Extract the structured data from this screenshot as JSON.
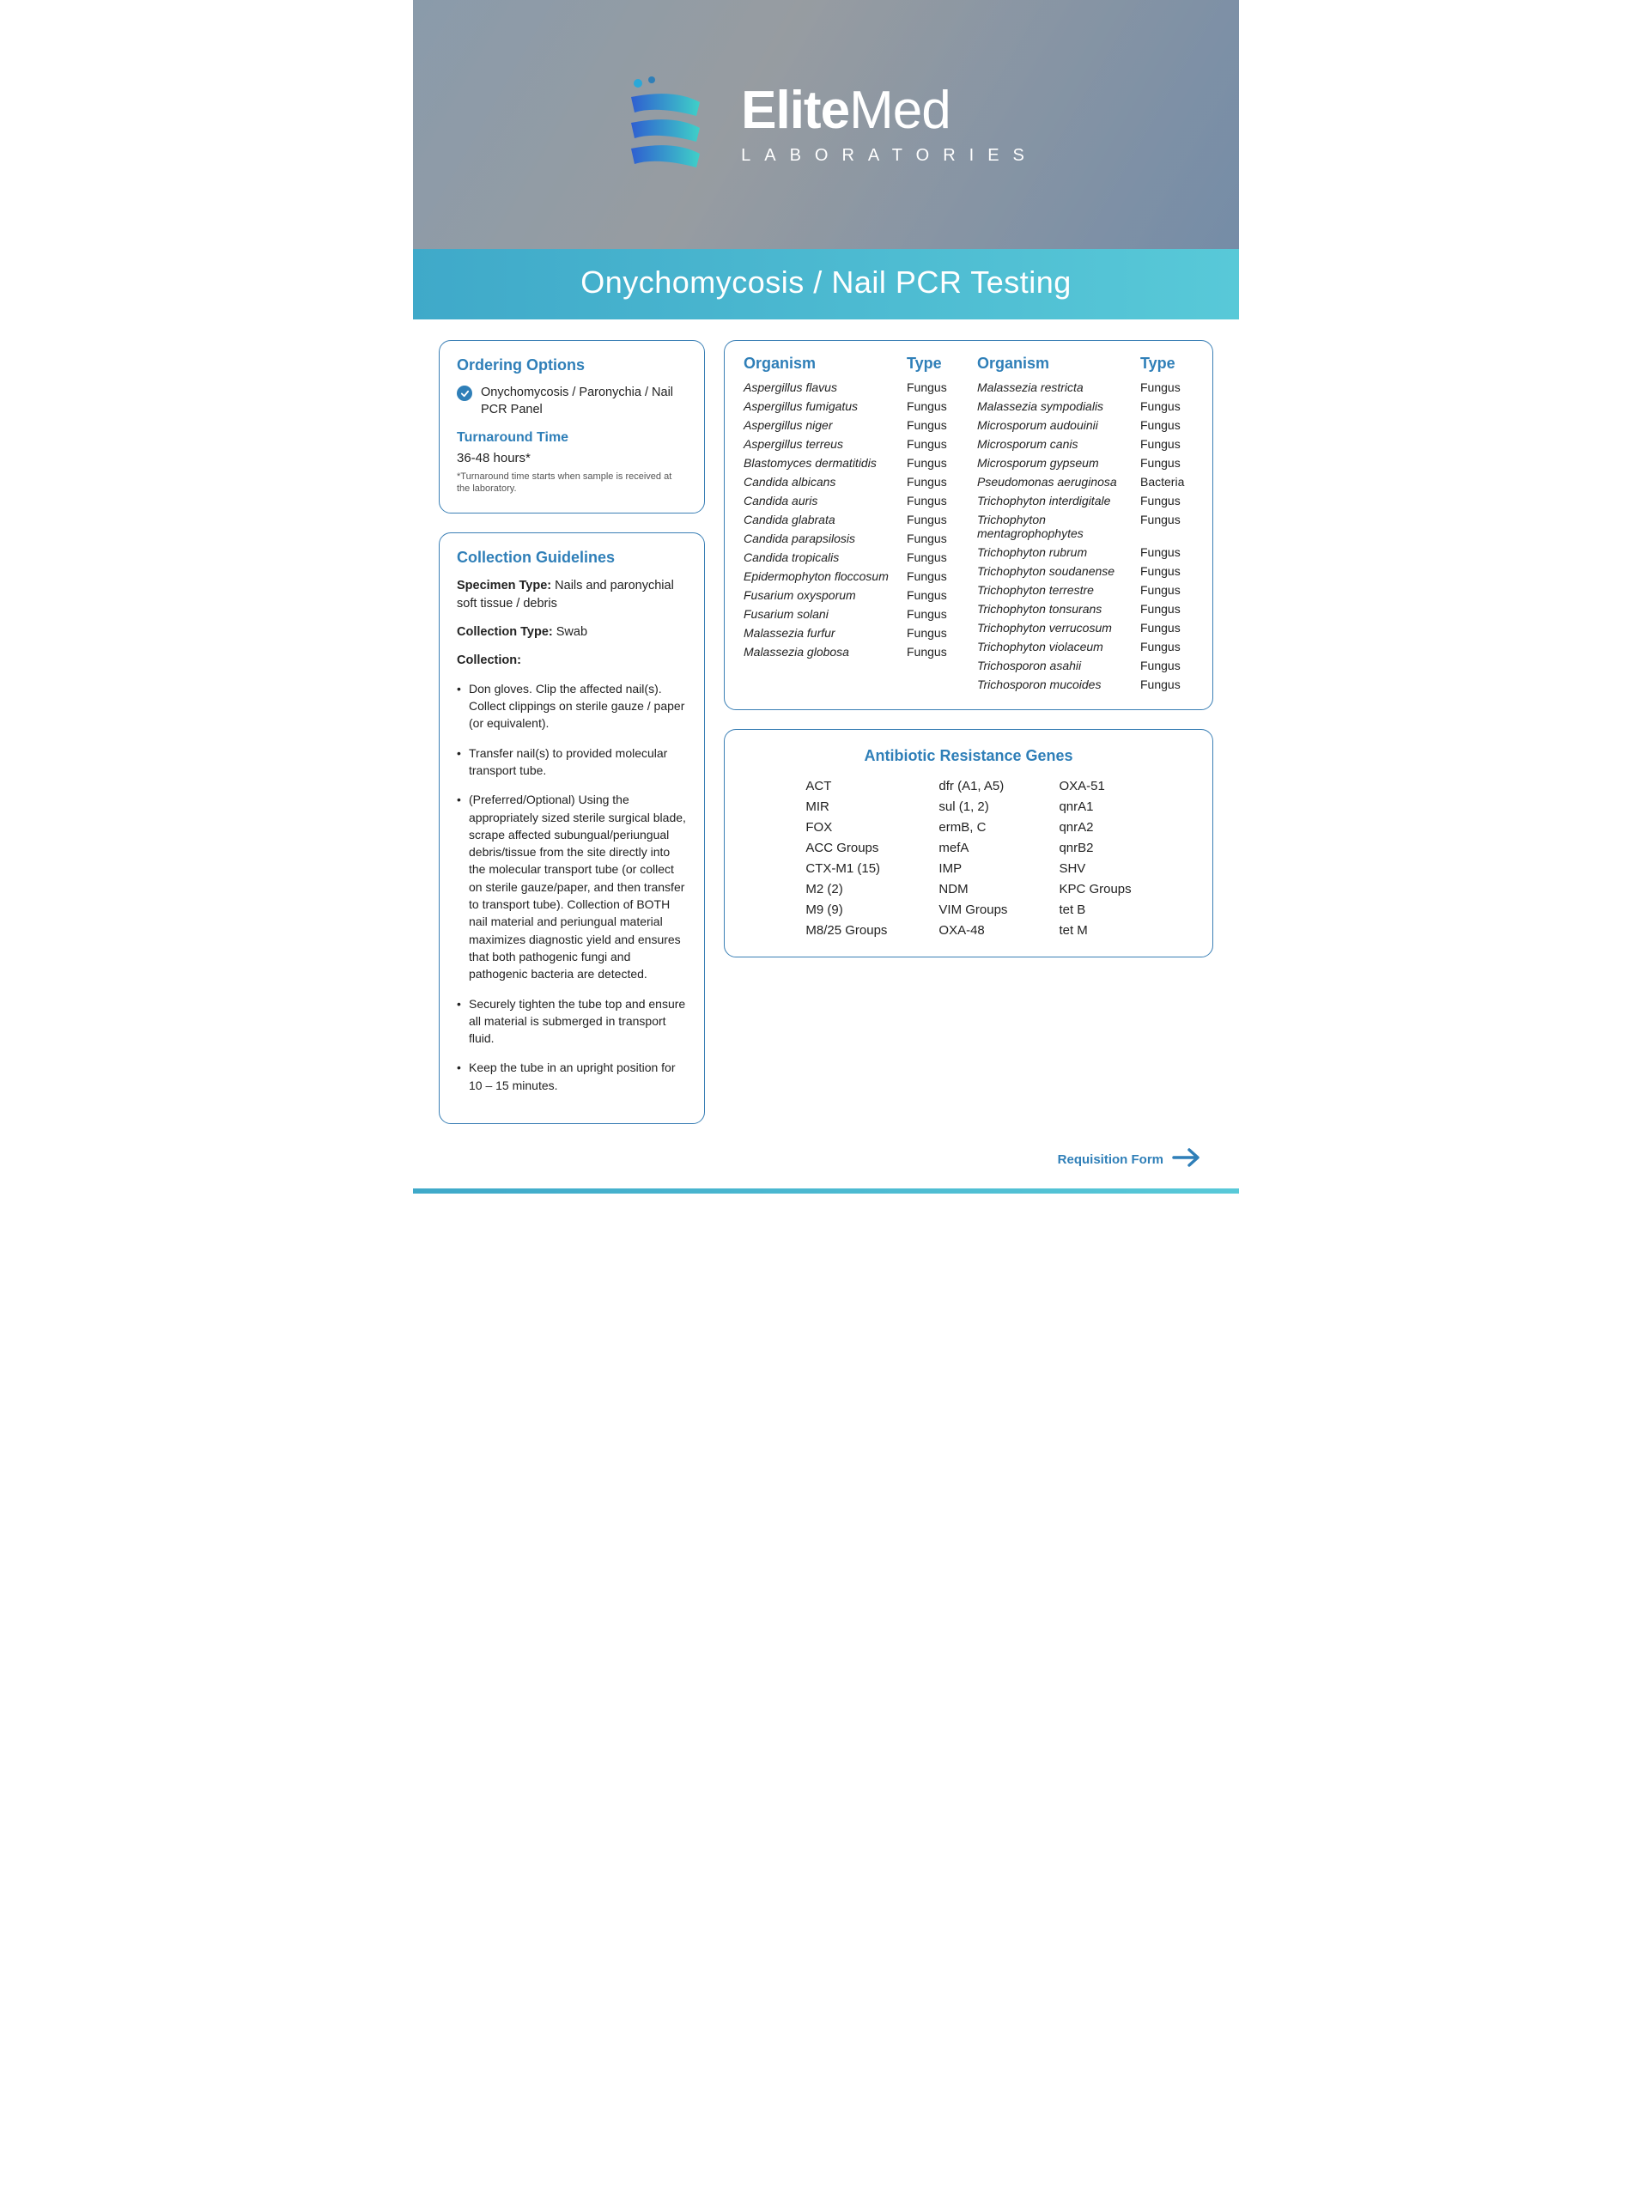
{
  "brand": {
    "name_bold": "Elite",
    "name_light": "Med",
    "sub": "LABORATORIES"
  },
  "title": "Onychomycosis / Nail PCR Testing",
  "colors": {
    "accent": "#2f7fb8",
    "bar_start": "#3fa9c9",
    "bar_end": "#58c9d8",
    "border": "#3a7fb5",
    "text": "#222222"
  },
  "ordering": {
    "heading": "Ordering Options",
    "option": "Onychomycosis / Paronychia  / Nail PCR Panel",
    "tat_heading": "Turnaround Time",
    "tat_value": "36-48 hours*",
    "tat_note": "*Turnaround time starts when sample is received at the laboratory."
  },
  "guidelines": {
    "heading": "Collection Guidelines",
    "specimen_label": "Specimen Type:",
    "specimen_value": " Nails and paronychial soft tissue / debris",
    "coll_type_label": "Collection Type:",
    "coll_type_value": " Swab",
    "coll_label": "Collection:",
    "steps": [
      "Don gloves. Clip the affected nail(s). Collect clippings on sterile gauze / paper (or equivalent).",
      "Transfer nail(s) to provided molecular transport tube.",
      "(Preferred/Optional) Using the appropriately sized sterile surgical blade, scrape affected subungual/periungual debris/tissue from the site directly into the molecular transport tube (or collect on sterile gauze/paper, and then transfer to transport tube). Collection of BOTH nail material and periungual material maximizes diagnostic yield and ensures that both pathogenic fungi and pathogenic bacteria are detected.",
      "Securely tighten the tube top and ensure all material is submerged in transport fluid.",
      "Keep the tube in an upright position for 10 – 15 minutes."
    ]
  },
  "organisms": {
    "col_org": "Organism",
    "col_type": "Type",
    "left": [
      {
        "n": "Aspergillus flavus",
        "t": "Fungus"
      },
      {
        "n": "Aspergillus fumigatus",
        "t": "Fungus"
      },
      {
        "n": "Aspergillus niger",
        "t": "Fungus"
      },
      {
        "n": "Aspergillus terreus",
        "t": "Fungus"
      },
      {
        "n": "Blastomyces dermatitidis",
        "t": "Fungus"
      },
      {
        "n": "Candida albicans",
        "t": "Fungus"
      },
      {
        "n": "Candida auris",
        "t": "Fungus"
      },
      {
        "n": "Candida glabrata",
        "t": "Fungus"
      },
      {
        "n": "Candida parapsilosis",
        "t": "Fungus"
      },
      {
        "n": "Candida tropicalis",
        "t": "Fungus"
      },
      {
        "n": "Epidermophyton floccosum",
        "t": "Fungus"
      },
      {
        "n": "Fusarium oxysporum",
        "t": "Fungus"
      },
      {
        "n": "Fusarium solani",
        "t": "Fungus"
      },
      {
        "n": "Malassezia furfur",
        "t": "Fungus"
      },
      {
        "n": "Malassezia globosa",
        "t": "Fungus"
      }
    ],
    "right": [
      {
        "n": "Malassezia restricta",
        "t": "Fungus"
      },
      {
        "n": "Malassezia sympodialis",
        "t": "Fungus"
      },
      {
        "n": "Microsporum audouinii",
        "t": "Fungus"
      },
      {
        "n": "Microsporum canis",
        "t": "Fungus"
      },
      {
        "n": "Microsporum gypseum",
        "t": "Fungus"
      },
      {
        "n": "Pseudomonas aeruginosa",
        "t": "Bacteria"
      },
      {
        "n": "Trichophyton interdigitale",
        "t": "Fungus"
      },
      {
        "n": "Trichophyton mentagrophophytes",
        "t": "Fungus"
      },
      {
        "n": "Trichophyton rubrum",
        "t": "Fungus"
      },
      {
        "n": "Trichophyton soudanense",
        "t": "Fungus"
      },
      {
        "n": "Trichophyton terrestre",
        "t": "Fungus"
      },
      {
        "n": "Trichophyton tonsurans",
        "t": "Fungus"
      },
      {
        "n": "Trichophyton verrucosum",
        "t": "Fungus"
      },
      {
        "n": "Trichophyton violaceum",
        "t": "Fungus"
      },
      {
        "n": "Trichosporon asahii",
        "t": "Fungus"
      },
      {
        "n": "Trichosporon mucoides",
        "t": "Fungus"
      }
    ]
  },
  "genes": {
    "heading": "Antibiotic Resistance Genes",
    "cols": [
      [
        "ACT",
        "MIR",
        "FOX",
        "ACC Groups",
        "CTX-M1 (15)",
        "M2 (2)",
        "M9 (9)",
        "M8/25 Groups"
      ],
      [
        "dfr (A1, A5)",
        "sul (1, 2)",
        "ermB, C",
        "mefA",
        "IMP",
        "NDM",
        "VIM Groups",
        "OXA-48"
      ],
      [
        "OXA-51",
        "qnrA1",
        "qnrA2",
        "qnrB2",
        "SHV",
        "KPC Groups",
        "tet B",
        "tet M"
      ]
    ]
  },
  "footer": {
    "label": "Requisition Form"
  }
}
